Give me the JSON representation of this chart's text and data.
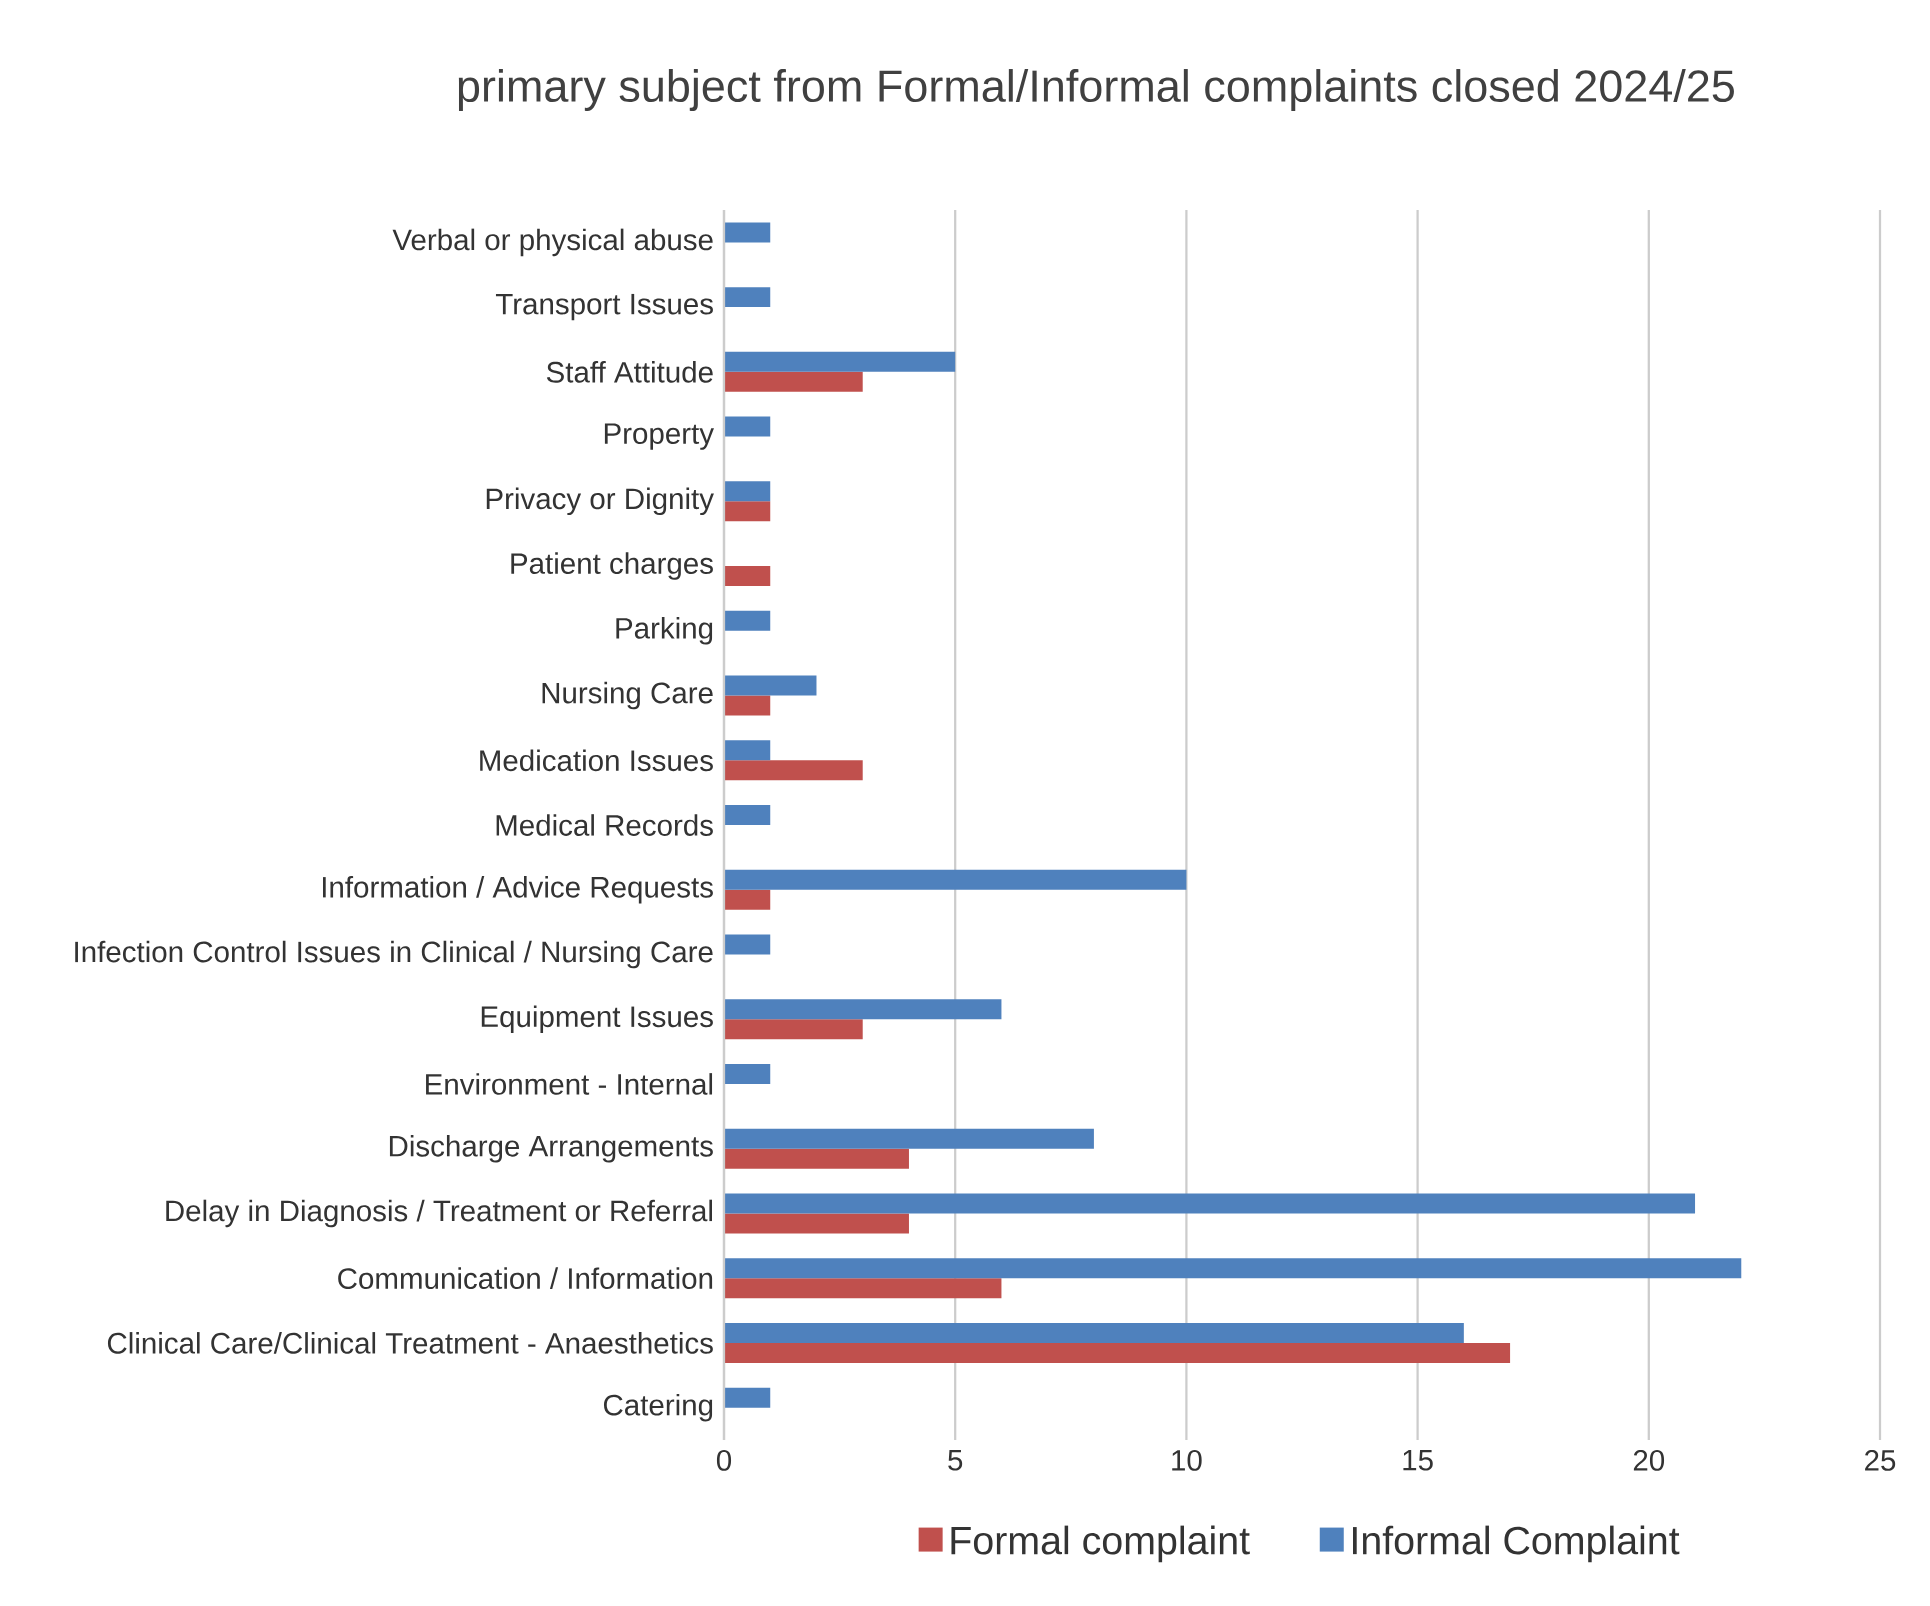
{
  "chart_data": {
    "type": "bar",
    "orientation": "horizontal",
    "title": "primary subject from Formal/Informal complaints closed 2024/25",
    "categories": [
      "Verbal or physical abuse",
      "Transport Issues",
      "Staff Attitude",
      "Property",
      "Privacy or Dignity",
      "Patient charges",
      "Parking",
      "Nursing Care",
      "Medication Issues",
      "Medical Records",
      "Information / Advice Requests",
      "Infection Control Issues in Clinical / Nursing Care",
      "Equipment Issues",
      "Environment - Internal",
      "Discharge Arrangements",
      "Delay in Diagnosis / Treatment or Referral",
      "Communication / Information",
      "Clinical Care/Clinical Treatment - Anaesthetics",
      "Catering"
    ],
    "series": [
      {
        "name": "Formal complaint",
        "color": "#c0504d",
        "values": [
          null,
          null,
          3,
          null,
          1,
          1,
          null,
          1,
          3,
          null,
          1,
          null,
          3,
          null,
          4,
          4,
          6,
          17,
          null
        ]
      },
      {
        "name": "Informal Complaint",
        "color": "#4f81bd",
        "values": [
          1,
          1,
          5,
          1,
          1,
          null,
          1,
          2,
          1,
          1,
          10,
          1,
          6,
          1,
          8,
          21,
          22,
          16,
          1
        ]
      }
    ],
    "xlim": [
      0,
      25
    ],
    "xticks": [
      0,
      5,
      10,
      15,
      20,
      25
    ],
    "grid": "x",
    "legend": "bottom"
  }
}
